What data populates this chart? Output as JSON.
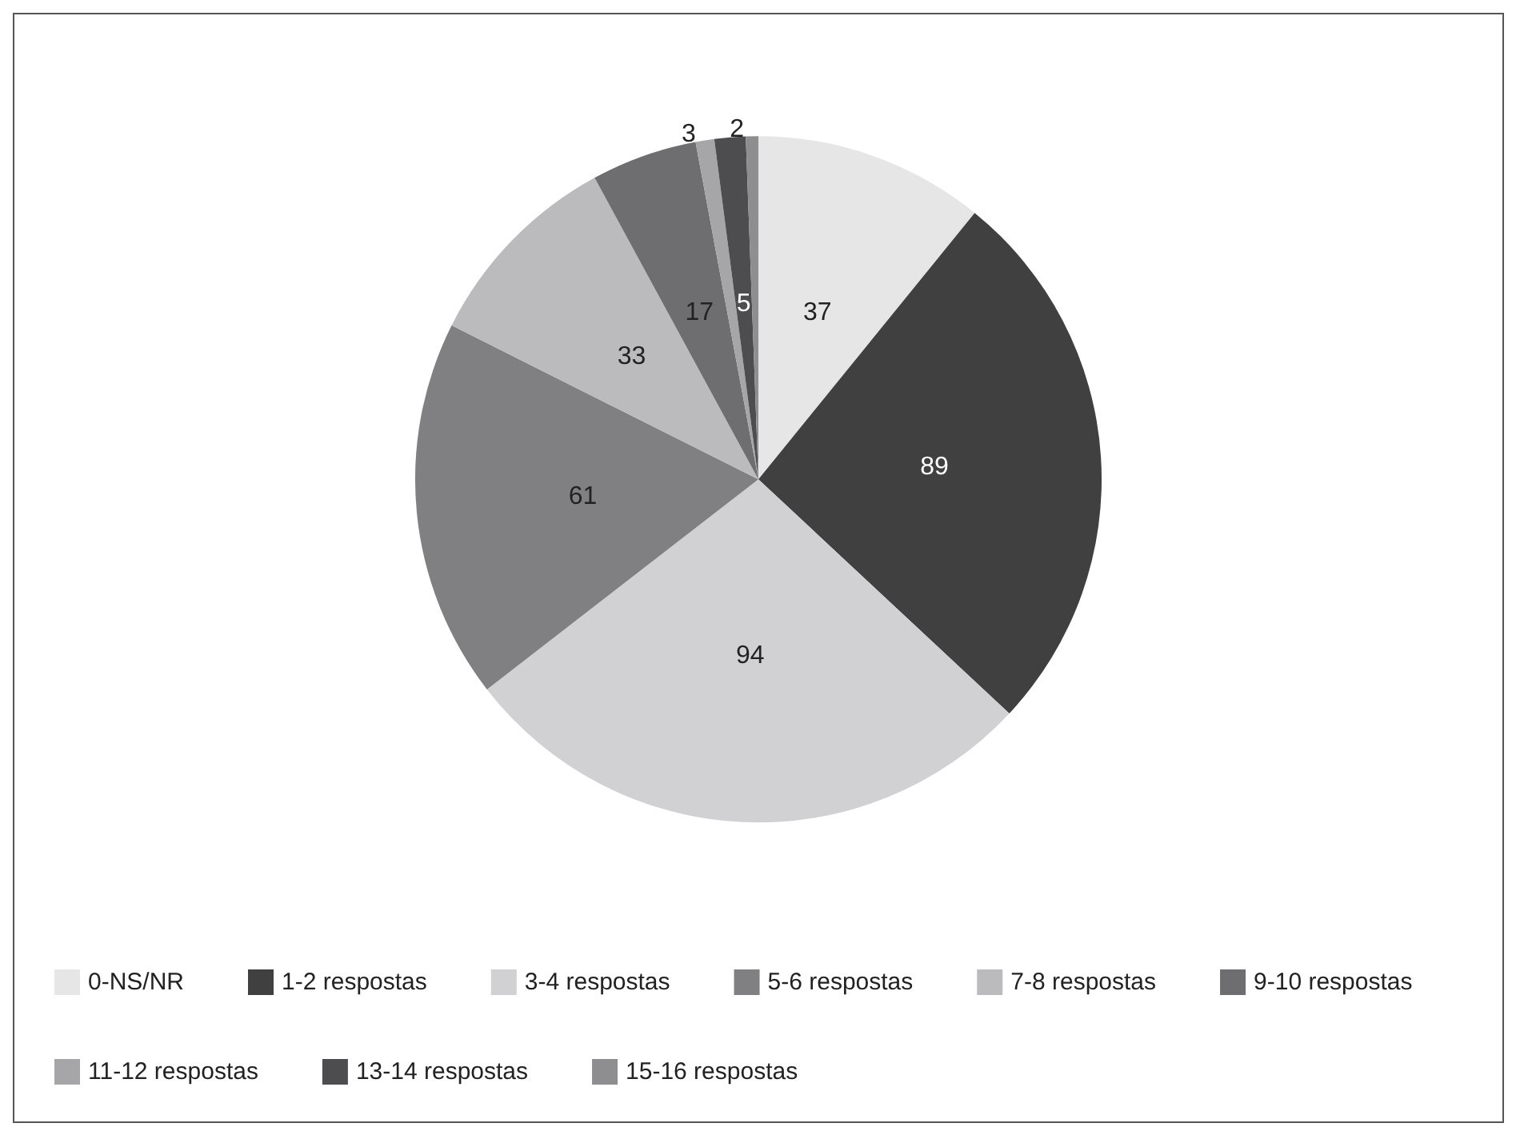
{
  "chart_data": {
    "type": "pie",
    "categories": [
      "0-NS/NR",
      "1-2 respostas",
      "3-4 respostas",
      "5-6 respostas",
      "7-8 respostas",
      "9-10 respostas",
      "11-12 respostas",
      "13-14 respostas",
      "15-16 respostas"
    ],
    "values": [
      37,
      89,
      94,
      61,
      33,
      17,
      3,
      5,
      2
    ],
    "colors": [
      "#e6e6e7",
      "#404040",
      "#d1d1d3",
      "#808082",
      "#bbbbbe",
      "#6e6e70",
      "#a6a6a8",
      "#4d4d4f",
      "#8e8e90"
    ],
    "data_labels": true,
    "legend": "bottom"
  }
}
